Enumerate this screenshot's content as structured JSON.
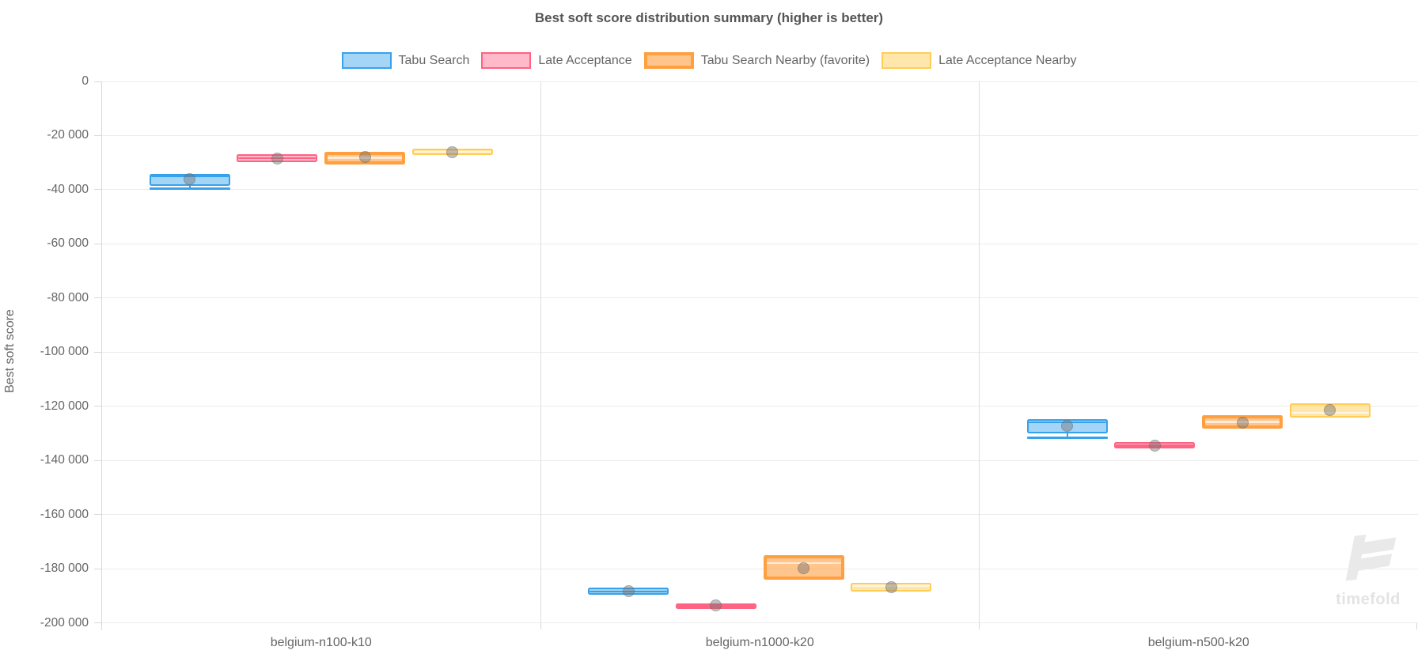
{
  "watermark": {
    "label": "timefold"
  },
  "chart_data": {
    "type": "boxplot",
    "title": "Best soft score distribution summary (higher is better)",
    "ylabel": "Best soft score",
    "xlabel": "",
    "grid": true,
    "legend_position": "top",
    "categories": [
      "belgium-n100-k10",
      "belgium-n1000-k20",
      "belgium-n500-k20"
    ],
    "y_axis": {
      "min": -200000,
      "max": 0,
      "tick_step": 20000,
      "tick_labels": [
        "0",
        "-20 000",
        "-40 000",
        "-60 000",
        "-80 000",
        "-100 000",
        "-120 000",
        "-140 000",
        "-160 000",
        "-180 000",
        "-200 000"
      ]
    },
    "series": [
      {
        "name": "Tabu Search",
        "color": "#36a2eb",
        "fill": "rgba(54,162,235,0.45)",
        "border_width": 2,
        "median_style": "dark",
        "boxes": [
          {
            "min": -39600,
            "q1": -38600,
            "median": -34900,
            "q3": -34200,
            "max": -34200,
            "mean": -36200
          },
          {
            "min": -189600,
            "q1": -189600,
            "median": -188400,
            "q3": -187100,
            "max": -187100,
            "mean": -188300
          },
          {
            "min": -131600,
            "q1": -130100,
            "median": -126000,
            "q3": -124800,
            "max": -124800,
            "mean": -127200
          }
        ]
      },
      {
        "name": "Late Acceptance",
        "color": "#ff6384",
        "fill": "rgba(255,99,132,0.45)",
        "border_width": 2,
        "median_style": "dark",
        "boxes": [
          {
            "min": -29800,
            "q1": -29800,
            "median": -28400,
            "q3": -26900,
            "max": -26900,
            "mean": -28400
          },
          {
            "min": -194900,
            "q1": -194900,
            "median": -193800,
            "q3": -192700,
            "max": -192700,
            "mean": -193700
          },
          {
            "min": -135500,
            "q1": -135500,
            "median": -134500,
            "q3": -133300,
            "max": -133300,
            "mean": -134500
          }
        ]
      },
      {
        "name": "Tabu Search Nearby (favorite)",
        "color": "#ff9f40",
        "fill": "rgba(255,159,64,0.6)",
        "border_width": 4,
        "median_style": "light",
        "boxes": [
          {
            "min": -30600,
            "q1": -30600,
            "median": -28200,
            "q3": -26100,
            "max": -26100,
            "mean": -27900
          },
          {
            "min": -184200,
            "q1": -184200,
            "median": -177900,
            "q3": -175000,
            "max": -175000,
            "mean": -179800
          },
          {
            "min": -128200,
            "q1": -128200,
            "median": -125800,
            "q3": -123300,
            "max": -123300,
            "mean": -126000
          }
        ]
      },
      {
        "name": "Late Acceptance Nearby",
        "color": "#ffcd56",
        "fill": "rgba(255,205,86,0.5)",
        "border_width": 2,
        "median_style": "light",
        "boxes": [
          {
            "min": -27100,
            "q1": -27100,
            "median": -26000,
            "q3": -24900,
            "max": -24900,
            "mean": -26100
          },
          {
            "min": -188600,
            "q1": -188600,
            "median": -186300,
            "q3": -185200,
            "max": -185200,
            "mean": -186900
          },
          {
            "min": -124100,
            "q1": -124100,
            "median": -122400,
            "q3": -118900,
            "max": -118900,
            "mean": -121400
          }
        ]
      }
    ]
  }
}
